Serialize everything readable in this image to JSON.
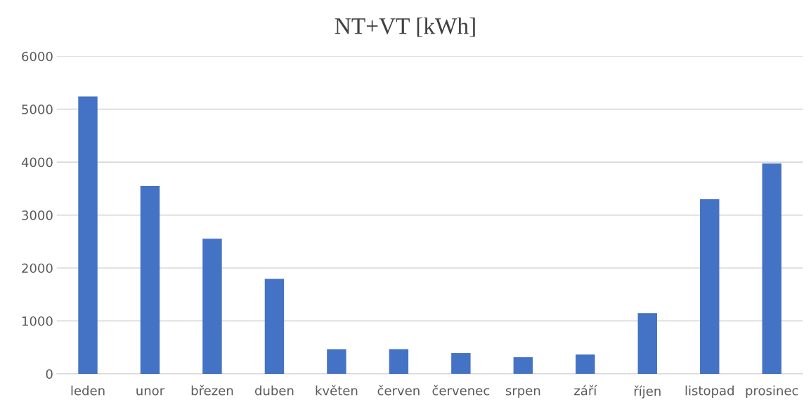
{
  "chart_data": {
    "type": "bar",
    "title": "NT+VT [kWh]",
    "categories": [
      "leden",
      "unor",
      "březen",
      "duben",
      "květen",
      "červen",
      "červenec",
      "srpen",
      "září",
      "říjen",
      "listopad",
      "prosinec"
    ],
    "values": [
      5240,
      3550,
      2555,
      1795,
      465,
      465,
      395,
      315,
      365,
      1150,
      3300,
      3975
    ],
    "color": "#4472c4",
    "ylim": [
      0,
      6000
    ],
    "yticks": [
      0,
      1000,
      2000,
      3000,
      4000,
      5000,
      6000
    ],
    "grid": "y"
  }
}
